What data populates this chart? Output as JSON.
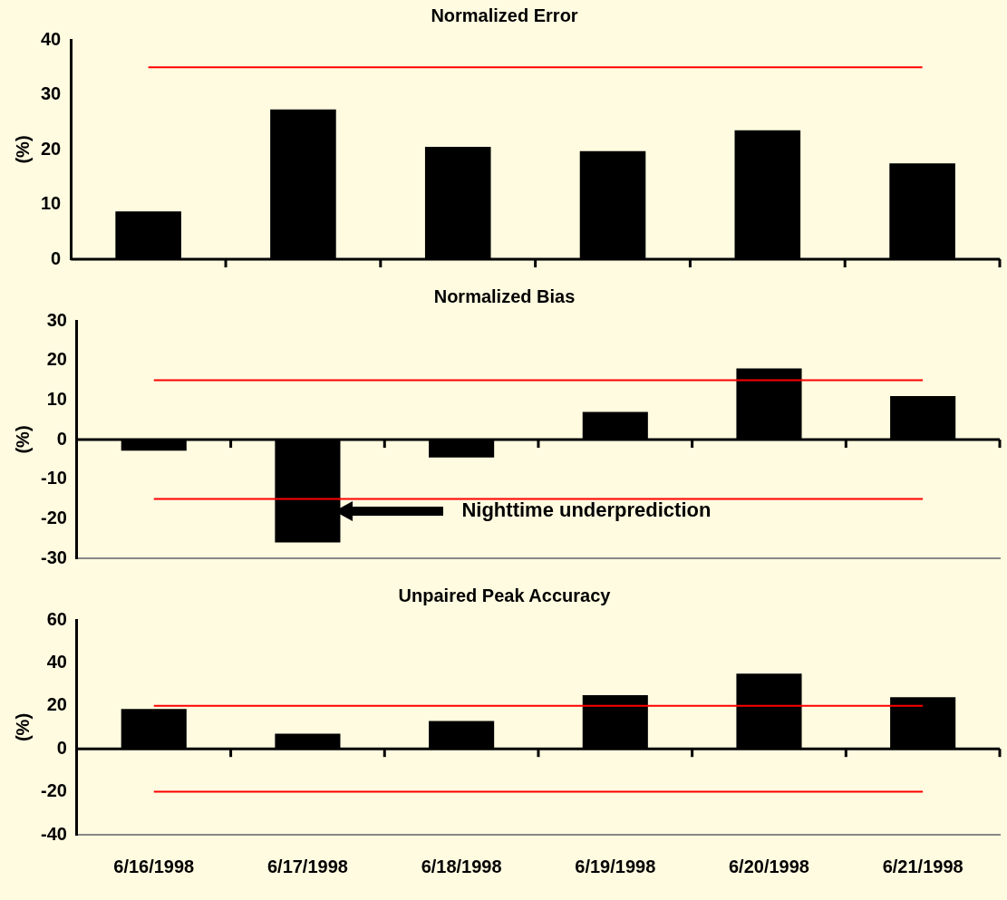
{
  "chart_data": [
    {
      "type": "bar",
      "title": "Normalized Error",
      "ylabel": "(%)",
      "categories": [
        null,
        null,
        null,
        null,
        null,
        null
      ],
      "values": [
        8.7,
        27.3,
        20.5,
        19.7,
        23.5,
        17.5
      ],
      "color": "#000000",
      "ylim": [
        0,
        40
      ],
      "yticks": [
        0,
        10,
        20,
        30,
        40
      ],
      "tick_labels": "y",
      "ref_lines": [
        {
          "axis": "y",
          "value": 35,
          "color": "#ff0000"
        }
      ]
    },
    {
      "type": "bar",
      "title": "Normalized Bias",
      "ylabel": "(%)",
      "categories": [
        null,
        null,
        null,
        null,
        null,
        null
      ],
      "values": [
        -2.8,
        -26,
        -4.5,
        7,
        18,
        11
      ],
      "color": "#000000",
      "ylim": [
        -30,
        30
      ],
      "yticks": [
        -30,
        -20,
        -10,
        0,
        10,
        20,
        30
      ],
      "tick_labels": "y",
      "ref_lines": [
        {
          "axis": "y",
          "value": 15,
          "color": "#ff0000"
        },
        {
          "axis": "y",
          "value": -15,
          "color": "#ff0000"
        }
      ],
      "annotations": [
        "Nighttime underprediction"
      ]
    },
    {
      "type": "bar",
      "title": "Unpaired Peak Accuracy",
      "ylabel": "(%)",
      "categories": [
        "6/16/1998",
        "6/17/1998",
        "6/18/1998",
        "6/19/1998",
        "6/20/1998",
        "6/21/1998"
      ],
      "values": [
        18.5,
        7,
        13,
        25,
        35,
        24
      ],
      "color": "#000000",
      "ylim": [
        -40,
        60
      ],
      "yticks": [
        -40,
        -20,
        0,
        20,
        40,
        60
      ],
      "ref_lines": [
        {
          "axis": "y",
          "value": 20,
          "color": "#ff0000"
        },
        {
          "axis": "y",
          "value": -20,
          "color": "#ff0000"
        }
      ]
    }
  ]
}
